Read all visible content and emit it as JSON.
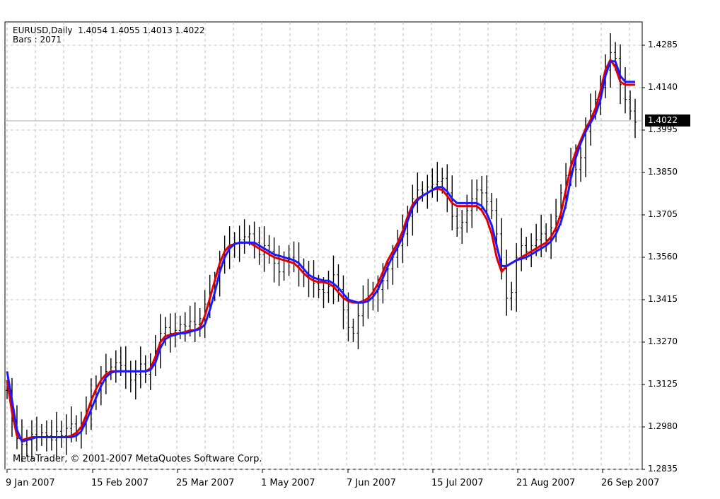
{
  "header": {
    "line1": "EURUSD,Daily  1.4054 1.4055 1.4013 1.4022",
    "line2": "Bars : 2071"
  },
  "copyright": "MetaTrader, © 2001-2007 MetaQuotes Software Corp.",
  "last_price_label": "1.4022",
  "colors": {
    "bars": "#000000",
    "red_line": "#e00000",
    "blue_line": "#1a1aff",
    "grid": "#c0c0c0"
  },
  "chart_data": {
    "type": "line",
    "title": "EURUSD,Daily",
    "ylim": [
      1.2835,
      1.4285
    ],
    "yticks": [
      "1.4285",
      "1.4140",
      "1.3995",
      "1.3850",
      "1.3705",
      "1.3560",
      "1.3415",
      "1.3270",
      "1.3125",
      "1.2980",
      "1.2835"
    ],
    "xticks": [
      "9 Jan 2007",
      "15 Feb 2007",
      "25 Mar 2007",
      "1 May 2007",
      "7 Jun 2007",
      "15 Jul 2007",
      "21 Aug 2007",
      "26 Sep 2007"
    ],
    "last_price": 1.4022,
    "grid": true,
    "close": [
      1.3105,
      1.3,
      1.294,
      1.292,
      1.2935,
      1.2955,
      1.2945,
      1.296,
      1.295,
      1.2935,
      1.2965,
      1.295,
      1.2975,
      1.299,
      1.296,
      1.299,
      1.303,
      1.308,
      1.312,
      1.314,
      1.317,
      1.3185,
      1.32,
      1.319,
      1.317,
      1.314,
      1.316,
      1.3195,
      1.316,
      1.319,
      1.324,
      1.33,
      1.332,
      1.33,
      1.331,
      1.333,
      1.3325,
      1.334,
      1.333,
      1.335,
      1.34,
      1.344,
      1.348,
      1.354,
      1.358,
      1.36,
      1.361,
      1.362,
      1.363,
      1.364,
      1.361,
      1.357,
      1.36,
      1.358,
      1.354,
      1.351,
      1.355,
      1.356,
      1.3545,
      1.352,
      1.35,
      1.349,
      1.347,
      1.345,
      1.344,
      1.346,
      1.35,
      1.345,
      1.338,
      1.332,
      1.33,
      1.336,
      1.341,
      1.342,
      1.344,
      1.345,
      1.348,
      1.352,
      1.356,
      1.36,
      1.364,
      1.37,
      1.376,
      1.379,
      1.378,
      1.38,
      1.381,
      1.382,
      1.383,
      1.378,
      1.37,
      1.366,
      1.368,
      1.372,
      1.376,
      1.379,
      1.378,
      1.375,
      1.372,
      1.364,
      1.352,
      1.342,
      1.344,
      1.356,
      1.36,
      1.358,
      1.36,
      1.362,
      1.364,
      1.362,
      1.366,
      1.37,
      1.378,
      1.384,
      1.388,
      1.386,
      1.39,
      1.399,
      1.406,
      1.41,
      1.414,
      1.42,
      1.426,
      1.424,
      1.415,
      1.41,
      1.406,
      1.4022
    ],
    "series": [
      {
        "values": [
          1.314,
          1.303,
          1.295,
          1.2935,
          1.294,
          1.2945,
          1.2945,
          1.2945,
          1.2945,
          1.2945,
          1.2945,
          1.2945,
          1.2945,
          1.295,
          1.296,
          1.298,
          1.302,
          1.307,
          1.311,
          1.314,
          1.316,
          1.317,
          1.317,
          1.317,
          1.317,
          1.317,
          1.317,
          1.317,
          1.317,
          1.318,
          1.322,
          1.327,
          1.329,
          1.3295,
          1.33,
          1.33,
          1.3305,
          1.331,
          1.331,
          1.332,
          1.336,
          1.342,
          1.348,
          1.354,
          1.358,
          1.36,
          1.3605,
          1.361,
          1.361,
          1.361,
          1.36,
          1.359,
          1.358,
          1.357,
          1.356,
          1.3555,
          1.355,
          1.3545,
          1.354,
          1.3525,
          1.3505,
          1.349,
          1.348,
          1.3475,
          1.3475,
          1.347,
          1.346,
          1.344,
          1.342,
          1.341,
          1.3405,
          1.3405,
          1.341,
          1.342,
          1.344,
          1.347,
          1.351,
          1.355,
          1.358,
          1.361,
          1.365,
          1.37,
          1.374,
          1.376,
          1.377,
          1.378,
          1.379,
          1.3795,
          1.379,
          1.377,
          1.3745,
          1.3735,
          1.3735,
          1.3735,
          1.3735,
          1.3735,
          1.372,
          1.369,
          1.364,
          1.356,
          1.351,
          1.353,
          1.354,
          1.355,
          1.356,
          1.357,
          1.358,
          1.359,
          1.36,
          1.361,
          1.363,
          1.366,
          1.371,
          1.379,
          1.387,
          1.392,
          1.396,
          1.4,
          1.403,
          1.407,
          1.413,
          1.42,
          1.4235,
          1.421,
          1.416,
          1.415,
          1.415,
          1.415
        ]
      },
      {
        "values": [
          1.317,
          1.307,
          1.297,
          1.293,
          1.2935,
          1.294,
          1.2945,
          1.2945,
          1.2945,
          1.2945,
          1.2945,
          1.2945,
          1.2945,
          1.2945,
          1.295,
          1.2965,
          1.3,
          1.304,
          1.308,
          1.312,
          1.315,
          1.3165,
          1.317,
          1.317,
          1.317,
          1.317,
          1.317,
          1.317,
          1.317,
          1.3175,
          1.32,
          1.325,
          1.328,
          1.329,
          1.3295,
          1.33,
          1.33,
          1.3305,
          1.331,
          1.3315,
          1.333,
          1.338,
          1.344,
          1.351,
          1.356,
          1.359,
          1.3605,
          1.361,
          1.361,
          1.361,
          1.361,
          1.36,
          1.359,
          1.358,
          1.357,
          1.3565,
          1.356,
          1.3555,
          1.355,
          1.354,
          1.352,
          1.35,
          1.349,
          1.3485,
          1.348,
          1.348,
          1.347,
          1.3455,
          1.3435,
          1.3415,
          1.341,
          1.3405,
          1.3405,
          1.341,
          1.3425,
          1.345,
          1.349,
          1.353,
          1.3565,
          1.3595,
          1.363,
          1.3685,
          1.373,
          1.3755,
          1.377,
          1.378,
          1.379,
          1.38,
          1.38,
          1.3785,
          1.376,
          1.3745,
          1.3745,
          1.3745,
          1.3745,
          1.3745,
          1.3735,
          1.371,
          1.367,
          1.36,
          1.353,
          1.353,
          1.354,
          1.355,
          1.3555,
          1.356,
          1.357,
          1.358,
          1.359,
          1.36,
          1.3615,
          1.364,
          1.368,
          1.374,
          1.383,
          1.39,
          1.395,
          1.399,
          1.402,
          1.405,
          1.41,
          1.418,
          1.423,
          1.423,
          1.418,
          1.416,
          1.416,
          1.416
        ]
      }
    ]
  }
}
